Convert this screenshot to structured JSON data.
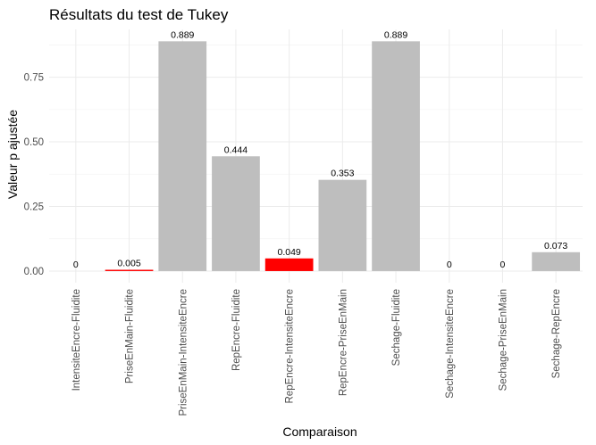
{
  "chart_data": {
    "type": "bar",
    "title": "Résultats du test de Tukey",
    "xlabel": "Comparaison",
    "ylabel": "Valeur p ajustée",
    "categories": [
      "IntensiteEncre-Fluidite",
      "PriseEnMain-Fluidite",
      "PriseEnMain-IntensiteEncre",
      "RepEncre-Fluidite",
      "RepEncre-IntensiteEncre",
      "RepEncre-PriseEnMain",
      "Sechage-Fluidite",
      "Sechage-IntensiteEncre",
      "Sechage-PriseEnMain",
      "Sechage-RepEncre"
    ],
    "values": [
      0,
      0.005,
      0.889,
      0.444,
      0.049,
      0.353,
      0.889,
      0,
      0,
      0.073
    ],
    "data_labels": [
      "0",
      "0.005",
      "0.889",
      "0.444",
      "0.049",
      "0.353",
      "0.889",
      "0",
      "0",
      "0.073"
    ],
    "bar_colors": [
      "#ff0000",
      "#ff0000",
      "#bebebe",
      "#bebebe",
      "#ff0000",
      "#bebebe",
      "#bebebe",
      "#ff0000",
      "#ff0000",
      "#bebebe"
    ],
    "yticks": [
      0,
      0.25,
      0.5,
      0.75
    ],
    "ytick_labels": [
      "0.00",
      "0.25",
      "0.50",
      "0.75"
    ],
    "ylim": [
      -0.045,
      0.935
    ],
    "grid": true,
    "legend": "none"
  }
}
